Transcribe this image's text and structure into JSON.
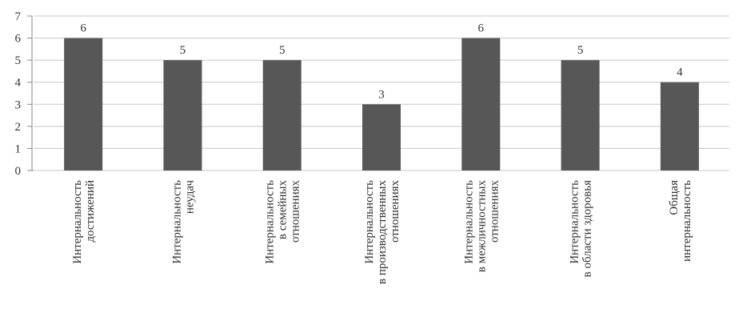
{
  "chart_data": {
    "type": "bar",
    "categories": [
      "Интернальность\nдостижений",
      "Интернальность\nнеудач",
      "Интернальность\nв семейных\nотношениях",
      "Интернальность\nв производственных\nотношениях",
      "Интернальность\nв межличностных\nотношениях",
      "Интернальность\nв области здоровья",
      "Общая\nинтернальность"
    ],
    "values": [
      6,
      5,
      5,
      3,
      6,
      5,
      4
    ],
    "color": "#575757",
    "ylim": [
      0,
      7
    ],
    "yticks": [
      0,
      1,
      2,
      3,
      4,
      5,
      6,
      7
    ],
    "grid": true
  }
}
